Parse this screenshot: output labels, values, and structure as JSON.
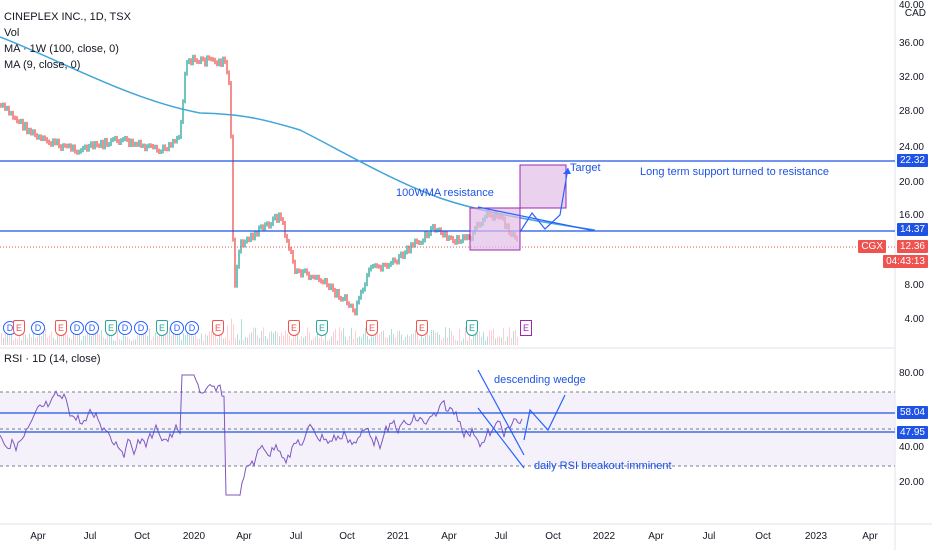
{
  "legend": {
    "symbol": "CINEPLEX INC., 1D, TSX",
    "volume": "Vol",
    "ma1": "MA · 1W (100, close, 0)",
    "ma2": "MA (9, close, 0)",
    "rsi": "RSI · 1D (14, close)"
  },
  "currency": "CAD",
  "price_scale": [
    "40.00",
    "36.00",
    "32.00",
    "28.00",
    "24.00",
    "20.00",
    "16.00",
    "8.00",
    "4.00"
  ],
  "rsi_scale": [
    "80.00",
    "40.00",
    "20.00"
  ],
  "price_tags": {
    "resistance": "22.32",
    "support": "14.37",
    "ticker": "CGX",
    "last": "12.36",
    "countdown": "04:43:13",
    "rsi_upper": "58.04",
    "rsi_lower": "47.95"
  },
  "x_axis": [
    "Apr",
    "Jul",
    "Oct",
    "2020",
    "Apr",
    "Jul",
    "Oct",
    "2021",
    "Apr",
    "Jul",
    "Oct",
    "2022",
    "Apr",
    "Jul",
    "Oct",
    "2023",
    "Apr"
  ],
  "annotations": {
    "target": "Target",
    "long_term": "Long term support turned to resistance",
    "wma": "100WMA resistance",
    "wedge": "descending wedge",
    "breakout": "daily RSI breakout imminent"
  },
  "colors": {
    "blue_line": "#1e53e5",
    "ma_line": "#42a5d9",
    "candle_up": "#26a69a",
    "candle_down": "#ef5350",
    "rsi_line": "#7e57c2",
    "rsi_band": "#ede7f6",
    "box": "#e1bee7",
    "last_tag": "#ef5350"
  },
  "chart_data": {
    "type": "candlestick",
    "price_ylim": [
      2,
      40
    ],
    "horizontal_levels": [
      22.32,
      14.37
    ],
    "last_price": 12.36,
    "rsi_levels": [
      58.04,
      47.95
    ]
  }
}
